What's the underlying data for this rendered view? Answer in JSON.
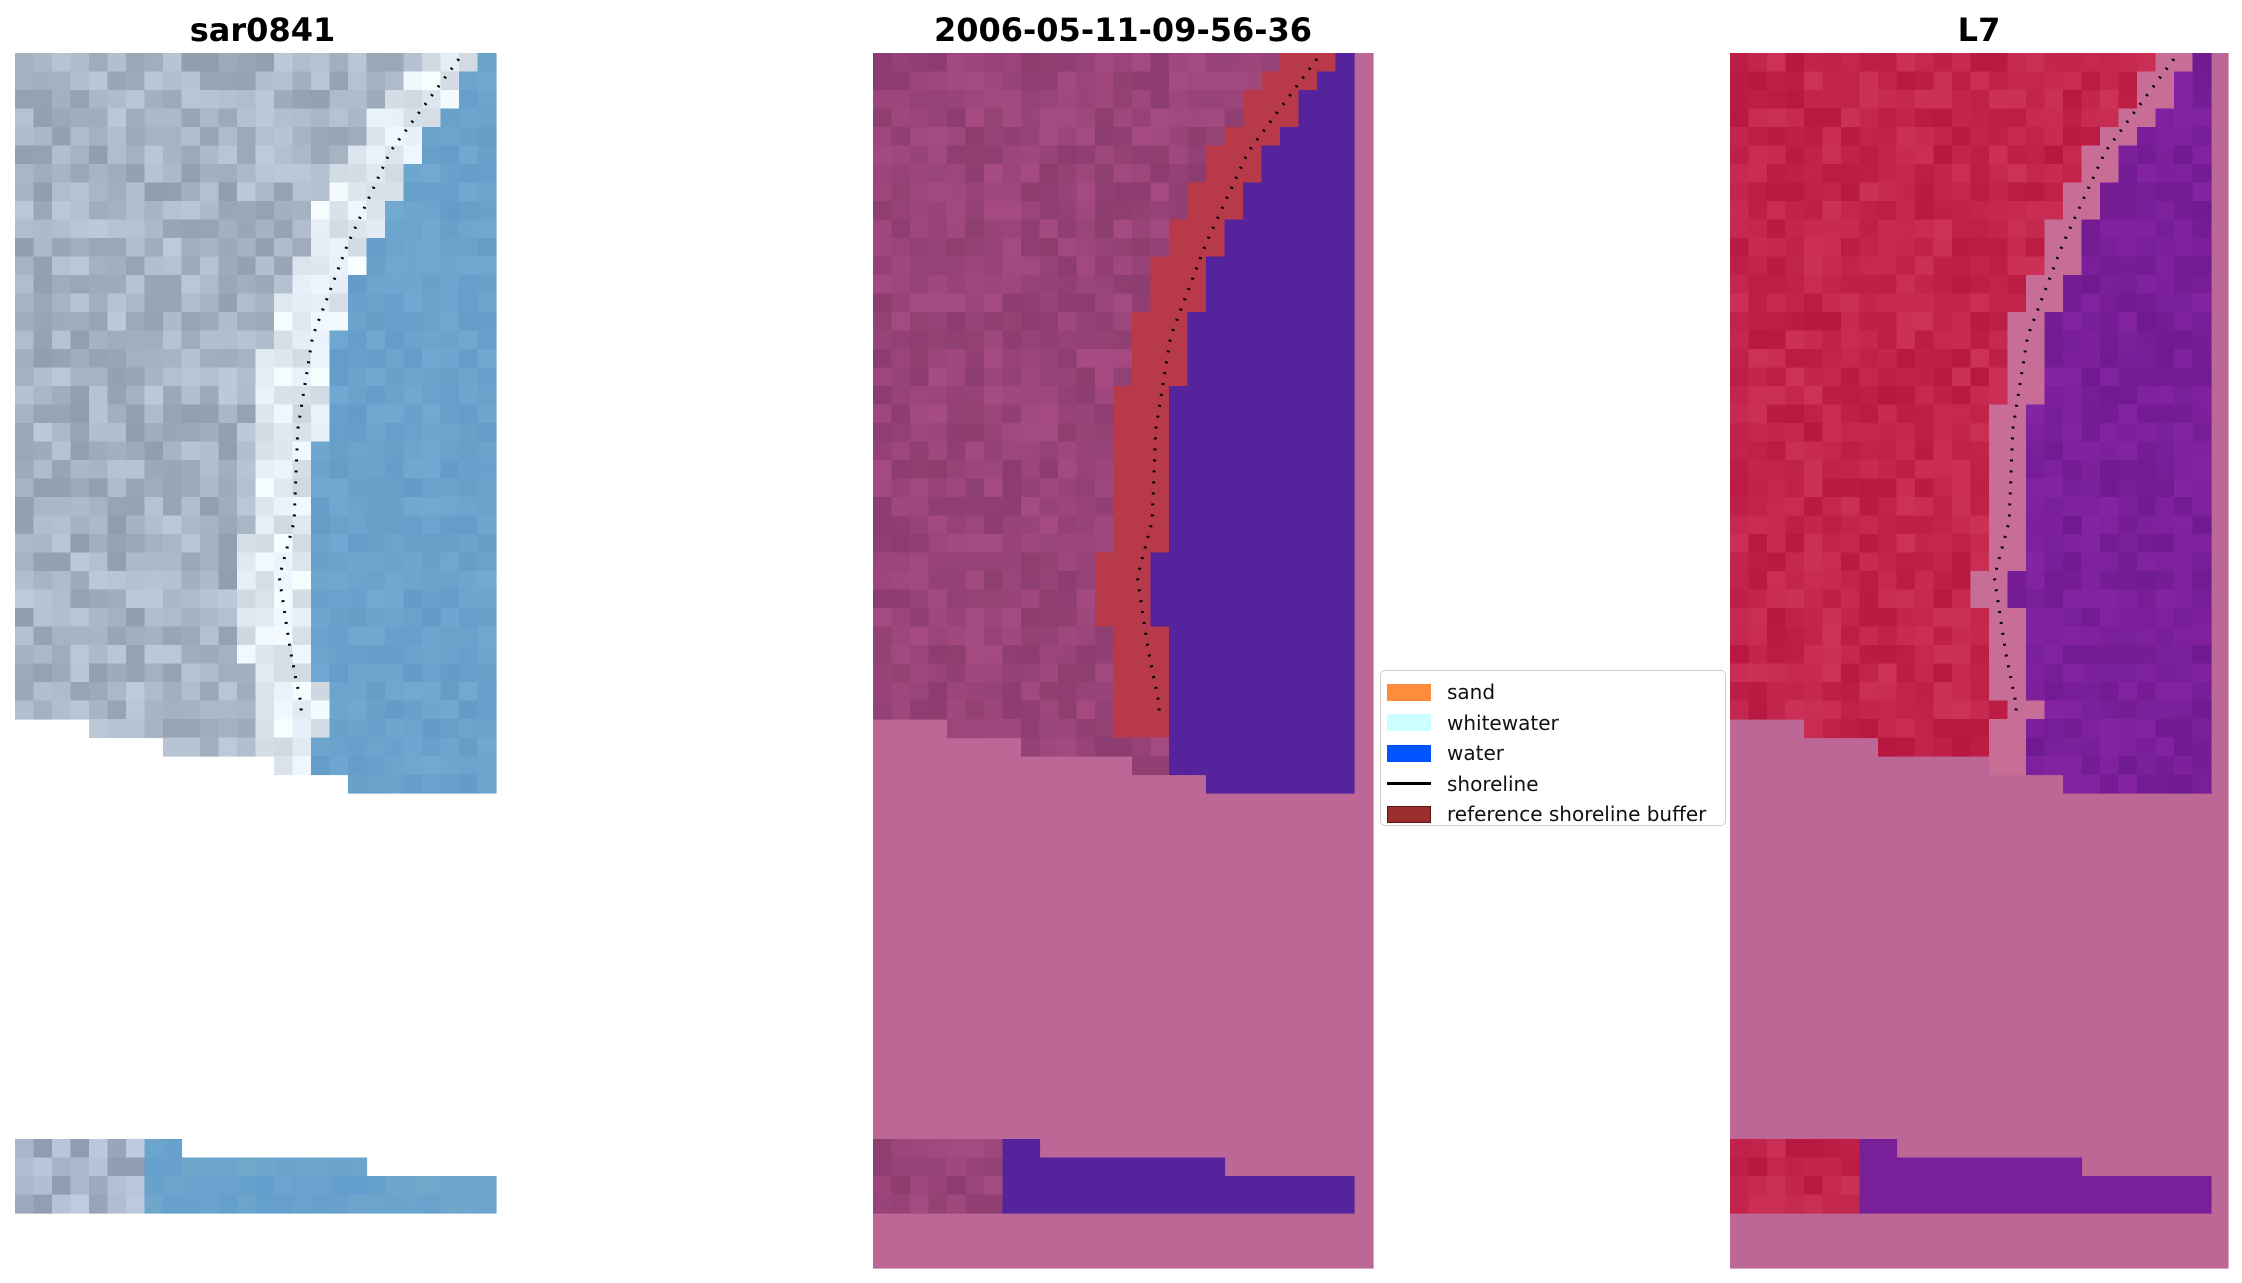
{
  "panels": [
    {
      "title": "sar0841",
      "kind": "rgb"
    },
    {
      "title": "2006-05-11-09-56-36",
      "kind": "classified"
    },
    {
      "title": "L7",
      "kind": "index"
    }
  ],
  "legend": {
    "items": [
      {
        "label": "sand",
        "color": "#ff8c3a",
        "type": "patch"
      },
      {
        "label": "whitewater",
        "color": "#ccffff",
        "type": "patch"
      },
      {
        "label": "water",
        "color": "#0055ff",
        "type": "patch"
      },
      {
        "label": "shoreline",
        "color": "#000000",
        "type": "line"
      },
      {
        "label": "reference shoreline buffer",
        "color": "#9b2d2d",
        "type": "patch"
      }
    ]
  },
  "colors": {
    "nodata_pink": "#bc6796",
    "classified_water": "#55239b",
    "buffer_red": "#b83a4a",
    "index_land": "#c2183f",
    "index_water": "#7a1f9a",
    "rgb_water": "#6aa3cc"
  }
}
